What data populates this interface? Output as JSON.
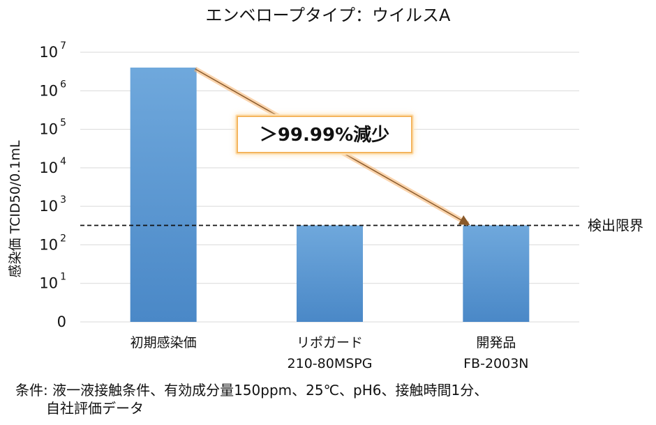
{
  "chart_data": {
    "type": "bar",
    "title": "エンベロープタイプ：ウイルスA",
    "ylabel": "感染価 TCID50/0.1mL",
    "yscale": "log",
    "ylim": [
      1,
      10000000
    ],
    "yticks": [
      {
        "base": "0",
        "exp": ""
      },
      {
        "base": "10",
        "exp": "1"
      },
      {
        "base": "10",
        "exp": "2"
      },
      {
        "base": "10",
        "exp": "3"
      },
      {
        "base": "10",
        "exp": "4"
      },
      {
        "base": "10",
        "exp": "5"
      },
      {
        "base": "10",
        "exp": "6"
      },
      {
        "base": "10",
        "exp": "7"
      }
    ],
    "categories": [
      {
        "line1": "初期感染価",
        "line2": ""
      },
      {
        "line1": "リポガード",
        "line2": "210-80MSPG"
      },
      {
        "line1": "開発品",
        "line2": "FB-2003N"
      }
    ],
    "values": [
      4000000,
      320,
      320
    ],
    "reference_line": {
      "value": 320,
      "label": "検出限界",
      "style": "dashed"
    },
    "annotation": {
      "text": "＞99.99%減少",
      "from_category": 0,
      "to_category": 2
    },
    "grid": true,
    "bar_color": "#5b9bd5"
  },
  "footnote": {
    "line1": "条件: 液一液接触条件、有効成分量150ppm、25℃、pH6、接触時間1分、",
    "line2": "自社評価データ"
  }
}
